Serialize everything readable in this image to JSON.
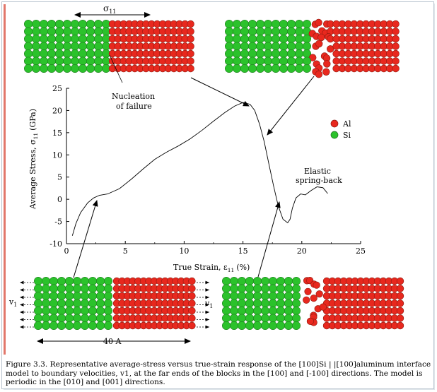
{
  "top_labels": {
    "sigma": "σ",
    "sigma_sub": "11",
    "nucleation": [
      "Nucleation",
      "of failure"
    ],
    "elastic": [
      "Elastic",
      "spring-back"
    ]
  },
  "legend": {
    "items": [
      {
        "label": "Al",
        "color": "#e8281e"
      },
      {
        "label": "Si",
        "color": "#2bc22b"
      }
    ]
  },
  "bottom_labels": {
    "v1_left": "v",
    "v1_right": "v",
    "v_sub": "1",
    "width_label": "40 A"
  },
  "chart_data": {
    "type": "line",
    "xlabel": "True Strain, ε",
    "xlabel_sub": "11",
    "xlabel_unit": "(%)",
    "ylabel": "Average Stress, σ",
    "ylabel_sub": "11",
    "ylabel_unit": "(GPa)",
    "xlim": [
      0,
      25
    ],
    "ylim": [
      -10,
      25
    ],
    "xticks": [
      0,
      5,
      10,
      15,
      20,
      25
    ],
    "yticks": [
      -10,
      -5,
      0,
      5,
      10,
      15,
      20,
      25
    ],
    "series": [
      {
        "x": [
          0.5,
          0.8,
          1.2,
          1.8,
          2.3,
          2.8,
          3.5,
          4.5,
          5.5,
          6.5,
          7.5,
          8.5,
          9.5,
          10.5,
          11.5,
          12.5,
          13.5,
          14.3,
          15.0,
          15.6,
          16.0,
          16.4,
          16.8,
          17.2,
          17.6,
          18.0,
          18.4,
          18.8,
          19.0,
          19.2,
          19.5,
          19.9,
          20.3,
          20.8,
          21.3,
          21.8,
          22.2
        ],
        "y": [
          -8.2,
          -5.5,
          -3.0,
          -0.8,
          0.3,
          0.9,
          1.2,
          2.4,
          4.5,
          6.8,
          9.0,
          10.6,
          12.0,
          13.6,
          15.5,
          17.6,
          19.6,
          21.0,
          21.8,
          21.4,
          20.0,
          17.0,
          13.0,
          8.0,
          3.0,
          -1.5,
          -4.5,
          -5.3,
          -4.5,
          -2.0,
          0.3,
          1.2,
          1.0,
          2.0,
          2.8,
          2.6,
          1.3
        ]
      }
    ]
  },
  "caption": "Figure 3.3. Representative average-stress versus true-strain response of the [100]Si | |[100]aluminum interface model to boundary velocities, v1, at the far ends of the blocks in the [100] and [-100] directions. The model is periodic in the [010] and [001] directions."
}
